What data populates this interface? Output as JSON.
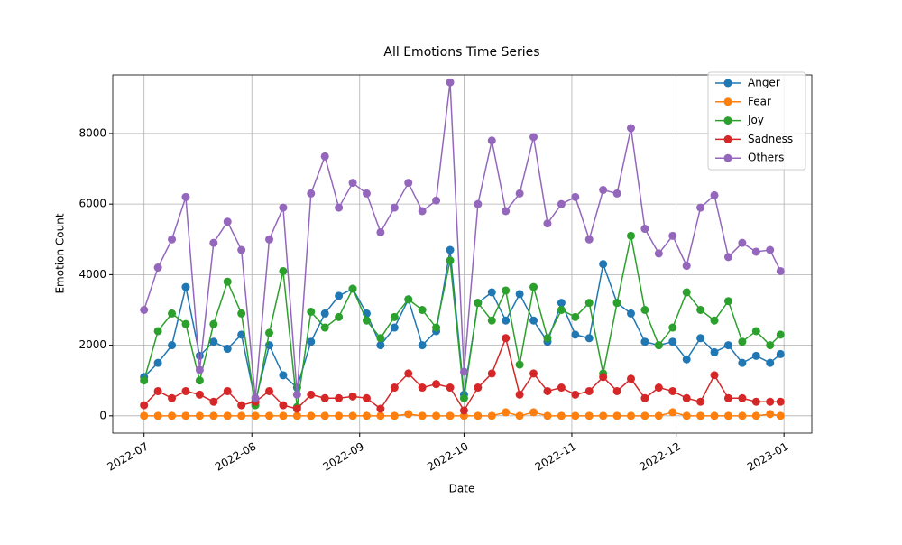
{
  "chart_data": {
    "type": "line",
    "title": "All Emotions Time Series",
    "x_label": "Date",
    "y_label": "Emotion Count",
    "x": [
      "2022-07-01",
      "2022-07-05",
      "2022-07-09",
      "2022-07-13",
      "2022-07-17",
      "2022-07-21",
      "2022-07-25",
      "2022-07-29",
      "2022-08-02",
      "2022-08-06",
      "2022-08-10",
      "2022-08-14",
      "2022-08-18",
      "2022-08-22",
      "2022-08-26",
      "2022-08-30",
      "2022-09-03",
      "2022-09-07",
      "2022-09-11",
      "2022-09-15",
      "2022-09-19",
      "2022-09-23",
      "2022-09-27",
      "2022-10-01",
      "2022-10-05",
      "2022-10-09",
      "2022-10-13",
      "2022-10-17",
      "2022-10-21",
      "2022-10-25",
      "2022-10-29",
      "2022-11-02",
      "2022-11-06",
      "2022-11-10",
      "2022-11-14",
      "2022-11-18",
      "2022-11-22",
      "2022-11-26",
      "2022-11-30",
      "2022-12-04",
      "2022-12-08",
      "2022-12-12",
      "2022-12-16",
      "2022-12-20",
      "2022-12-24",
      "2022-12-28",
      "2022-12-31"
    ],
    "series": [
      {
        "name": "Anger",
        "color": "#1f77b4",
        "values": [
          1100,
          1500,
          2000,
          3650,
          1700,
          2100,
          1900,
          2300,
          400,
          2000,
          1150,
          800,
          2100,
          2900,
          3400,
          3600,
          2900,
          2000,
          2500,
          3300,
          2000,
          2400,
          4700,
          600,
          3200,
          3500,
          2700,
          3450,
          2700,
          2100,
          3200,
          2300,
          2200,
          4300,
          3200,
          2900,
          2100,
          2000,
          2100,
          1600,
          2200,
          1800,
          2000,
          1500,
          1700,
          1500,
          1750
        ]
      },
      {
        "name": "Fear",
        "color": "#ff7f0e",
        "values": [
          0,
          0,
          0,
          0,
          0,
          0,
          0,
          0,
          0,
          0,
          0,
          0,
          0,
          0,
          0,
          0,
          0,
          0,
          0,
          50,
          0,
          0,
          0,
          0,
          0,
          0,
          100,
          0,
          100,
          0,
          0,
          0,
          0,
          0,
          0,
          0,
          0,
          0,
          100,
          0,
          0,
          0,
          0,
          0,
          0,
          50,
          0
        ]
      },
      {
        "name": "Joy",
        "color": "#2ca02c",
        "values": [
          1000,
          2400,
          2900,
          2600,
          1000,
          2600,
          3800,
          2900,
          300,
          2350,
          4100,
          250,
          2950,
          2500,
          2800,
          3600,
          2700,
          2200,
          2800,
          3300,
          3000,
          2500,
          4400,
          500,
          3200,
          2700,
          3550,
          1450,
          3650,
          2200,
          3000,
          2800,
          3200,
          1200,
          3200,
          5100,
          3000,
          2000,
          2500,
          3500,
          3000,
          2700,
          3250,
          2100,
          2400,
          2000,
          2300
        ]
      },
      {
        "name": "Sadness",
        "color": "#d62728",
        "values": [
          300,
          700,
          500,
          700,
          600,
          400,
          700,
          300,
          400,
          700,
          300,
          200,
          600,
          500,
          500,
          550,
          500,
          200,
          800,
          1200,
          800,
          900,
          800,
          150,
          800,
          1200,
          2200,
          600,
          1200,
          700,
          800,
          600,
          700,
          1100,
          700,
          1050,
          500,
          800,
          700,
          500,
          400,
          1150,
          500,
          500,
          400,
          400,
          400
        ]
      },
      {
        "name": "Others",
        "color": "#9467bd",
        "values": [
          3000,
          4200,
          5000,
          6200,
          1300,
          4900,
          5500,
          4700,
          500,
          5000,
          5900,
          600,
          6300,
          7350,
          5900,
          6600,
          6300,
          5200,
          5900,
          6600,
          5800,
          6100,
          9450,
          1250,
          6000,
          7800,
          5800,
          6300,
          7900,
          5450,
          6000,
          6200,
          5000,
          6400,
          6300,
          8150,
          5300,
          4600,
          5100,
          4250,
          5900,
          6250,
          4500,
          4900,
          4650,
          4700,
          4100
        ]
      }
    ],
    "xlim": [
      "2022-06-22",
      "2023-01-09"
    ],
    "xticks": [
      {
        "value": "2022-07-01",
        "label": "2022-07"
      },
      {
        "value": "2022-08-01",
        "label": "2022-08"
      },
      {
        "value": "2022-09-01",
        "label": "2022-09"
      },
      {
        "value": "2022-10-01",
        "label": "2022-10"
      },
      {
        "value": "2022-11-01",
        "label": "2022-11"
      },
      {
        "value": "2022-12-01",
        "label": "2022-12"
      },
      {
        "value": "2023-01-01",
        "label": "2023-01"
      }
    ],
    "ylim": [
      -490,
      9660
    ],
    "yticks": [
      0,
      2000,
      4000,
      6000,
      8000
    ],
    "grid": true,
    "legend": "upper right"
  }
}
